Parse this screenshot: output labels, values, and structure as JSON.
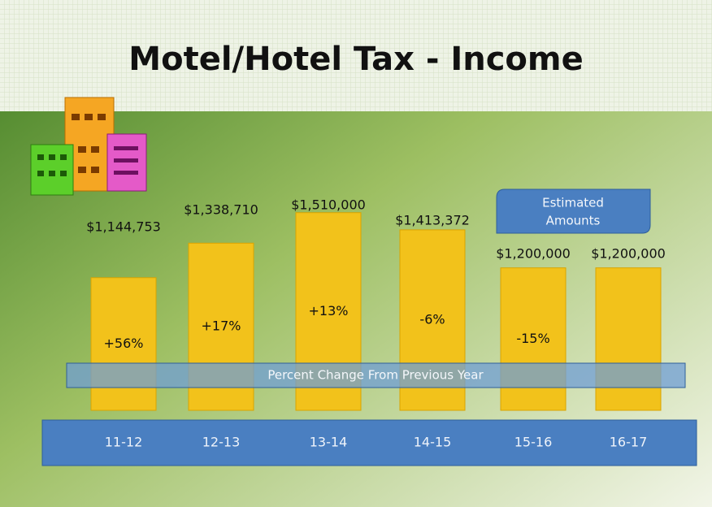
{
  "chart_data": {
    "type": "bar",
    "title": "Motel/Hotel Tax - Income",
    "categories": [
      "11-12",
      "12-13",
      "13-14",
      "14-15",
      "15-16",
      "16-17"
    ],
    "values": [
      1144753,
      1338710,
      1510000,
      1413372,
      1200000,
      1200000
    ],
    "value_labels": [
      "$1,144,753",
      "$1,338,710",
      "$1,510,000",
      "$1,413,372",
      "$1,200,000",
      "$1,200,000"
    ],
    "change_labels": [
      "+56%",
      "+17%",
      "+13%",
      "-6%",
      "-15%"
    ],
    "color": "#f2c21b",
    "ylim": [
      400000,
      1600000
    ],
    "annotations": {
      "estimated": [
        "Estimated",
        "Amounts"
      ],
      "band": "Percent Change From Previous Year"
    }
  }
}
